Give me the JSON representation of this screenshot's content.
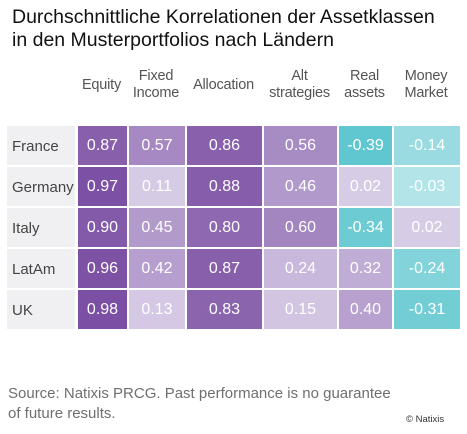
{
  "title": {
    "line1": "Durchschnittliche Korrelationen der Assetklassen",
    "line2": "in den Musterportfolios nach Ländern"
  },
  "chart_data": {
    "type": "heatmap",
    "columns": [
      [
        "Equity"
      ],
      [
        "Fixed",
        "Income"
      ],
      [
        "Allocation"
      ],
      [
        "Alt",
        "strategies"
      ],
      [
        "Real",
        "assets"
      ],
      [
        "Money",
        "Market"
      ]
    ],
    "rows": [
      "France",
      "Germany",
      "Italy",
      "LatAm",
      "UK"
    ],
    "values": [
      [
        0.87,
        0.57,
        0.86,
        0.56,
        -0.39,
        -0.14
      ],
      [
        0.97,
        0.11,
        0.88,
        0.46,
        0.02,
        -0.03
      ],
      [
        0.9,
        0.45,
        0.8,
        0.6,
        -0.34,
        0.02
      ],
      [
        0.96,
        0.42,
        0.87,
        0.24,
        0.32,
        -0.24
      ],
      [
        0.98,
        0.13,
        0.83,
        0.15,
        0.4,
        -0.31
      ]
    ],
    "labels": [
      [
        "0.87",
        "0.57",
        "0.86",
        "0.56",
        "-0.39",
        "-0.14"
      ],
      [
        "0.97",
        "0.11",
        "0.88",
        "0.46",
        "0.02",
        "-0.03"
      ],
      [
        "0.90",
        "0.45",
        "0.80",
        "0.60",
        "-0.34",
        "0.02"
      ],
      [
        "0.96",
        "0.42",
        "0.87",
        "0.24",
        "0.32",
        "-0.24"
      ],
      [
        "0.98",
        "0.13",
        "0.83",
        "0.15",
        "0.40",
        "-0.31"
      ]
    ],
    "colors": {
      "high": "#7b4fa3",
      "low": "#d7cce6",
      "negative_strong": "#5ec6cf",
      "negative_weak": "#b9e6ea"
    }
  },
  "source": {
    "line1": "Source: Natixis PRCG.  Past performance is no guarantee",
    "line2": "of future results."
  },
  "copyright": "© Natixis"
}
